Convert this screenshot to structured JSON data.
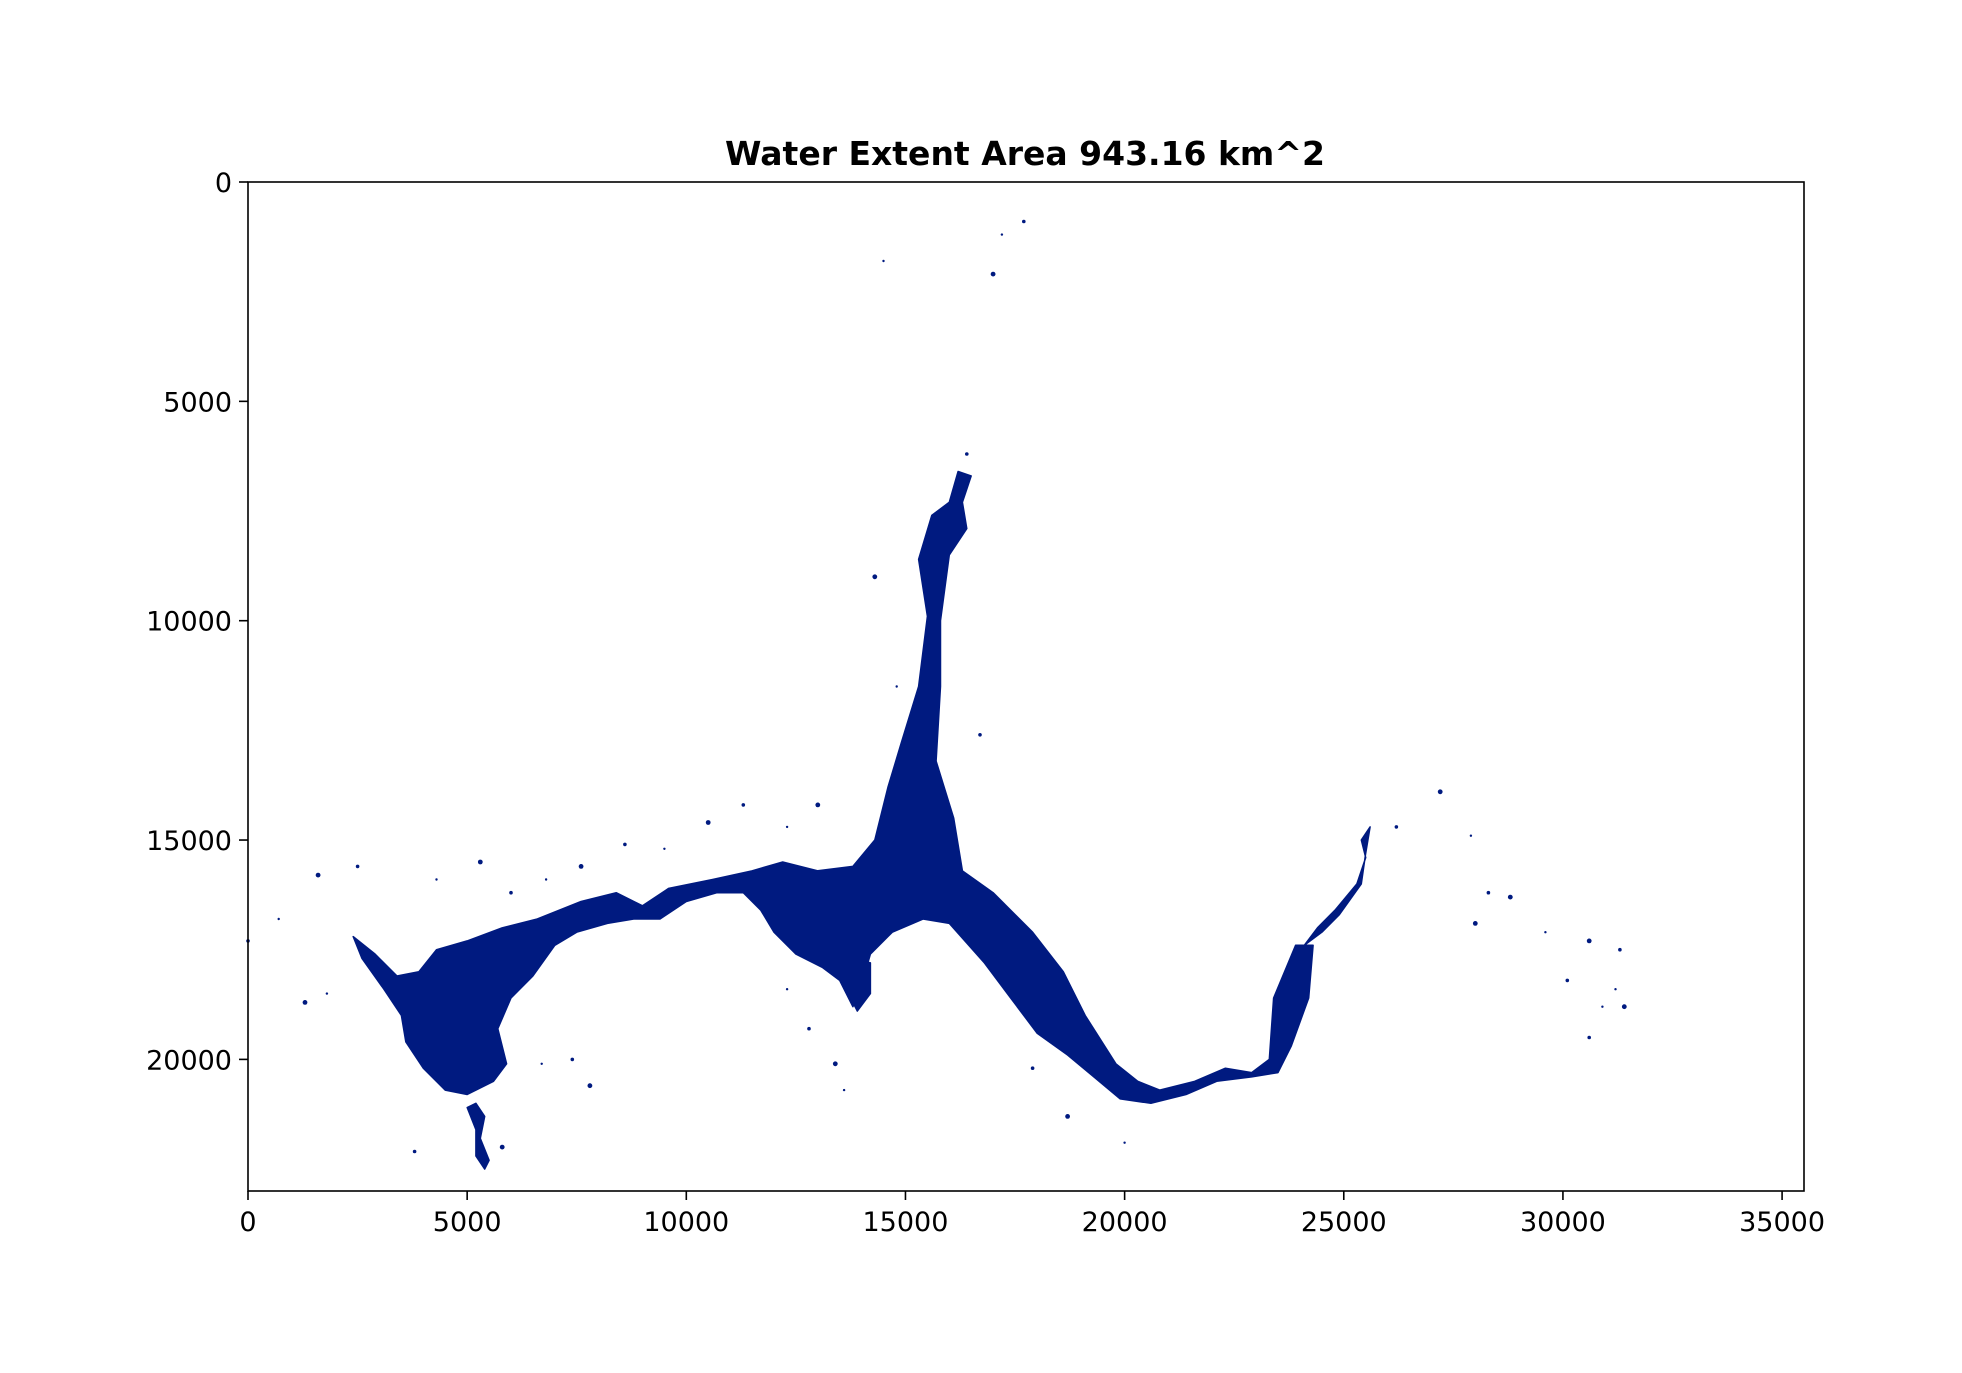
{
  "chart_data": {
    "type": "image",
    "title": "Water Extent Area 943.16 km^2",
    "xlabel": "",
    "ylabel": "",
    "xlim": [
      0,
      35500
    ],
    "ylim": [
      23000,
      0
    ],
    "x_ticks": [
      0,
      5000,
      10000,
      15000,
      20000,
      25000,
      30000,
      35000
    ],
    "y_ticks": [
      0,
      5000,
      10000,
      15000,
      20000
    ],
    "grid": false,
    "water_color": "#001a80",
    "background_color": "#ffffff",
    "regions": [
      {
        "name": "main-reservoir-body",
        "points": [
          [
            2400,
            17200
          ],
          [
            2900,
            17600
          ],
          [
            3400,
            18100
          ],
          [
            3900,
            18000
          ],
          [
            4300,
            17500
          ],
          [
            5000,
            17300
          ],
          [
            5800,
            17000
          ],
          [
            6600,
            16800
          ],
          [
            7600,
            16400
          ],
          [
            8400,
            16200
          ],
          [
            9000,
            16500
          ],
          [
            9600,
            16100
          ],
          [
            10600,
            15900
          ],
          [
            11500,
            15700
          ],
          [
            12200,
            15500
          ],
          [
            13000,
            15700
          ],
          [
            13800,
            15600
          ],
          [
            14300,
            15000
          ],
          [
            14600,
            13800
          ],
          [
            14900,
            12800
          ],
          [
            15300,
            11500
          ],
          [
            15500,
            9900
          ],
          [
            15300,
            8600
          ],
          [
            15600,
            7600
          ],
          [
            16000,
            7300
          ],
          [
            16200,
            6600
          ],
          [
            16500,
            6700
          ],
          [
            16300,
            7300
          ],
          [
            16400,
            7900
          ],
          [
            16000,
            8500
          ],
          [
            15800,
            10000
          ],
          [
            15800,
            11500
          ],
          [
            15700,
            13200
          ],
          [
            16100,
            14500
          ],
          [
            16300,
            15700
          ],
          [
            17000,
            16200
          ],
          [
            17900,
            17100
          ],
          [
            18600,
            18000
          ],
          [
            19100,
            19000
          ],
          [
            19800,
            20100
          ],
          [
            20300,
            20500
          ],
          [
            20800,
            20700
          ],
          [
            21600,
            20500
          ],
          [
            22300,
            20200
          ],
          [
            22900,
            20300
          ],
          [
            23300,
            20000
          ],
          [
            23400,
            18600
          ],
          [
            23900,
            17400
          ],
          [
            24300,
            17400
          ],
          [
            24200,
            18600
          ],
          [
            23800,
            19700
          ],
          [
            23500,
            20300
          ],
          [
            22900,
            20400
          ],
          [
            22100,
            20500
          ],
          [
            21400,
            20800
          ],
          [
            20600,
            21000
          ],
          [
            19900,
            20900
          ],
          [
            19300,
            20400
          ],
          [
            18700,
            19900
          ],
          [
            18000,
            19400
          ],
          [
            17400,
            18600
          ],
          [
            16800,
            17800
          ],
          [
            16000,
            16900
          ],
          [
            15400,
            16800
          ],
          [
            14700,
            17100
          ],
          [
            14200,
            17600
          ],
          [
            14000,
            18300
          ],
          [
            13800,
            18800
          ],
          [
            13500,
            18200
          ],
          [
            13100,
            17900
          ],
          [
            12500,
            17600
          ],
          [
            12000,
            17100
          ],
          [
            11700,
            16600
          ],
          [
            11300,
            16200
          ],
          [
            10700,
            16200
          ],
          [
            10000,
            16400
          ],
          [
            9400,
            16800
          ],
          [
            8800,
            16800
          ],
          [
            8200,
            16900
          ],
          [
            7500,
            17100
          ],
          [
            7000,
            17400
          ],
          [
            6500,
            18100
          ],
          [
            6000,
            18600
          ],
          [
            5700,
            19300
          ],
          [
            5900,
            20100
          ],
          [
            5600,
            20500
          ],
          [
            5000,
            20800
          ],
          [
            4500,
            20700
          ],
          [
            4000,
            20200
          ],
          [
            3600,
            19600
          ],
          [
            3500,
            19000
          ],
          [
            3100,
            18400
          ],
          [
            2600,
            17700
          ]
        ]
      },
      {
        "name": "eastern-river-channel",
        "points": [
          [
            24100,
            17400
          ],
          [
            24400,
            17000
          ],
          [
            24800,
            16600
          ],
          [
            25300,
            16000
          ],
          [
            25500,
            15400
          ],
          [
            25400,
            15000
          ],
          [
            25600,
            14700
          ],
          [
            25500,
            15300
          ],
          [
            25400,
            16000
          ],
          [
            24900,
            16700
          ],
          [
            24500,
            17100
          ]
        ]
      },
      {
        "name": "southern-inlet",
        "points": [
          [
            5200,
            21000
          ],
          [
            5400,
            21300
          ],
          [
            5300,
            21800
          ],
          [
            5500,
            22300
          ],
          [
            5400,
            22500
          ],
          [
            5200,
            22200
          ],
          [
            5200,
            21600
          ],
          [
            5000,
            21100
          ]
        ]
      },
      {
        "name": "south-arm",
        "points": [
          [
            13800,
            17700
          ],
          [
            14200,
            17800
          ],
          [
            14200,
            18500
          ],
          [
            13900,
            18900
          ],
          [
            13700,
            18500
          ]
        ]
      }
    ],
    "speckles": [
      [
        17200,
        1200
      ],
      [
        17700,
        900
      ],
      [
        17000,
        2100
      ],
      [
        14500,
        1800
      ],
      [
        16400,
        6200
      ],
      [
        14300,
        9000
      ],
      [
        14800,
        11500
      ],
      [
        16700,
        12600
      ],
      [
        13000,
        14200
      ],
      [
        12300,
        14700
      ],
      [
        11300,
        14200
      ],
      [
        10500,
        14600
      ],
      [
        9500,
        15200
      ],
      [
        8600,
        15100
      ],
      [
        7600,
        15600
      ],
      [
        6800,
        15900
      ],
      [
        6000,
        16200
      ],
      [
        5300,
        15500
      ],
      [
        4300,
        15900
      ],
      [
        2500,
        15600
      ],
      [
        1600,
        15800
      ],
      [
        700,
        16800
      ],
      [
        0,
        17300
      ],
      [
        1300,
        18700
      ],
      [
        1800,
        18500
      ],
      [
        3800,
        22100
      ],
      [
        5800,
        22000
      ],
      [
        6700,
        20100
      ],
      [
        7400,
        20000
      ],
      [
        7800,
        20600
      ],
      [
        12300,
        18400
      ],
      [
        12800,
        19300
      ],
      [
        13400,
        20100
      ],
      [
        13600,
        20700
      ],
      [
        17900,
        20200
      ],
      [
        18700,
        21300
      ],
      [
        20000,
        21900
      ],
      [
        26200,
        14700
      ],
      [
        27200,
        13900
      ],
      [
        27900,
        14900
      ],
      [
        28300,
        16200
      ],
      [
        28800,
        16300
      ],
      [
        29600,
        17100
      ],
      [
        30100,
        18200
      ],
      [
        30600,
        17300
      ],
      [
        31200,
        18400
      ],
      [
        31300,
        17500
      ],
      [
        31400,
        18800
      ],
      [
        30900,
        18800
      ],
      [
        30600,
        19500
      ],
      [
        28000,
        16900
      ]
    ]
  }
}
